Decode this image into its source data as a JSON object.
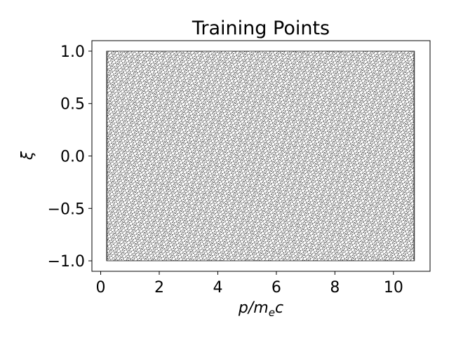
{
  "chart_data": {
    "type": "scatter",
    "title": "Training Points",
    "xlabel": {
      "base": "p/m",
      "sub": "e",
      "tail": "c"
    },
    "ylabel": "ξ",
    "xlim": [
      -0.3,
      11.25
    ],
    "ylim": [
      -1.1,
      1.1
    ],
    "x_ticks": [
      0,
      2,
      4,
      6,
      8,
      10
    ],
    "x_tick_labels": [
      "0",
      "2",
      "4",
      "6",
      "8",
      "10"
    ],
    "y_ticks": [
      -1.0,
      -0.5,
      0.0,
      0.5,
      1.0
    ],
    "y_tick_labels": [
      "−1.0",
      "−0.5",
      "0.0",
      "0.5",
      "1.0"
    ],
    "grid": false,
    "legend": "none",
    "point_color": "#000000",
    "point_region": {
      "x_min": 0.2,
      "x_max": 10.7,
      "y_min": -1.0,
      "y_max": 1.0
    },
    "point_count": 20000
  }
}
